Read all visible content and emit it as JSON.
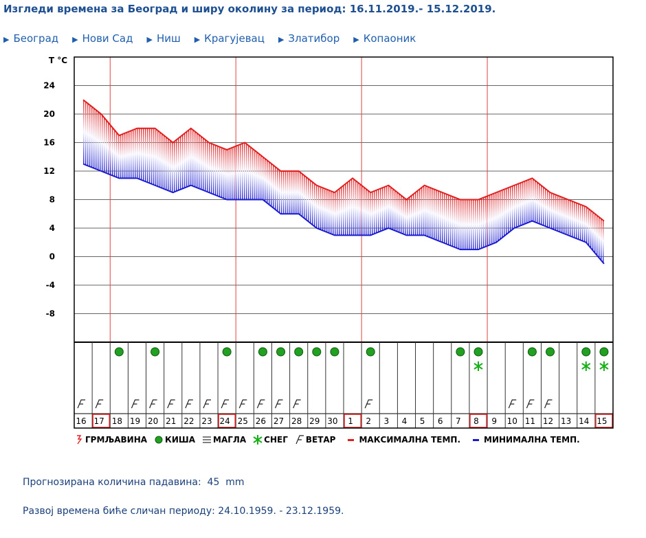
{
  "title": "Изгледи времена за Београд и ширу околину за период: 16.11.2019.- 15.12.2019.",
  "links": [
    "Београд",
    "Нови Сад",
    "Ниш",
    "Крагујевац",
    "Златибор",
    "Копаоник"
  ],
  "chart_data": {
    "type": "line",
    "y_label": "T °C",
    "categories": [
      "16",
      "17",
      "18",
      "19",
      "20",
      "21",
      "22",
      "23",
      "24",
      "25",
      "26",
      "27",
      "28",
      "29",
      "30",
      "1",
      "2",
      "3",
      "4",
      "5",
      "6",
      "7",
      "8",
      "9",
      "10",
      "11",
      "12",
      "13",
      "14",
      "15"
    ],
    "highlighted": [
      "17",
      "24",
      "1",
      "8",
      "15"
    ],
    "series": [
      {
        "name": "МАКСИМАЛНА ТЕМП.",
        "color": "#e02020",
        "values": [
          22,
          20,
          17,
          18,
          18,
          16,
          18,
          16,
          15,
          16,
          14,
          12,
          12,
          10,
          9,
          11,
          9,
          10,
          8,
          10,
          9,
          8,
          8,
          9,
          10,
          11,
          9,
          8,
          7,
          5
        ]
      },
      {
        "name": "МИНИМАЛНА ТЕМП.",
        "color": "#1a1ad0",
        "values": [
          13,
          12,
          11,
          11,
          10,
          9,
          10,
          9,
          8,
          8,
          8,
          6,
          6,
          4,
          3,
          3,
          3,
          4,
          3,
          3,
          2,
          1,
          1,
          2,
          4,
          5,
          4,
          3,
          2,
          -1
        ]
      }
    ],
    "symbols": [
      {
        "name": "ГРМЉАВИНА",
        "days": []
      },
      {
        "name": "КИША",
        "days": [
          "18",
          "20",
          "24",
          "26",
          "27",
          "28",
          "29",
          "30",
          "2",
          "7",
          "8",
          "11",
          "12",
          "14",
          "15"
        ]
      },
      {
        "name": "МАГЛА",
        "days": []
      },
      {
        "name": "СНЕГ",
        "days": [
          "8",
          "14",
          "15"
        ]
      },
      {
        "name": "ВЕТАР",
        "days": [
          "16",
          "17",
          "19",
          "20",
          "21",
          "22",
          "23",
          "24",
          "25",
          "26",
          "27",
          "28",
          "2",
          "10",
          "11",
          "12"
        ]
      }
    ],
    "ylim": [
      -12,
      28
    ],
    "yticks": [
      -8,
      -4,
      0,
      4,
      8,
      12,
      16,
      20,
      24
    ],
    "grid": true
  },
  "precipitation": "Прогнозирана количина падавина:  45  mm",
  "analog": "Развој времена биће сличан периоду: 24.10.1959. - 23.12.1959."
}
